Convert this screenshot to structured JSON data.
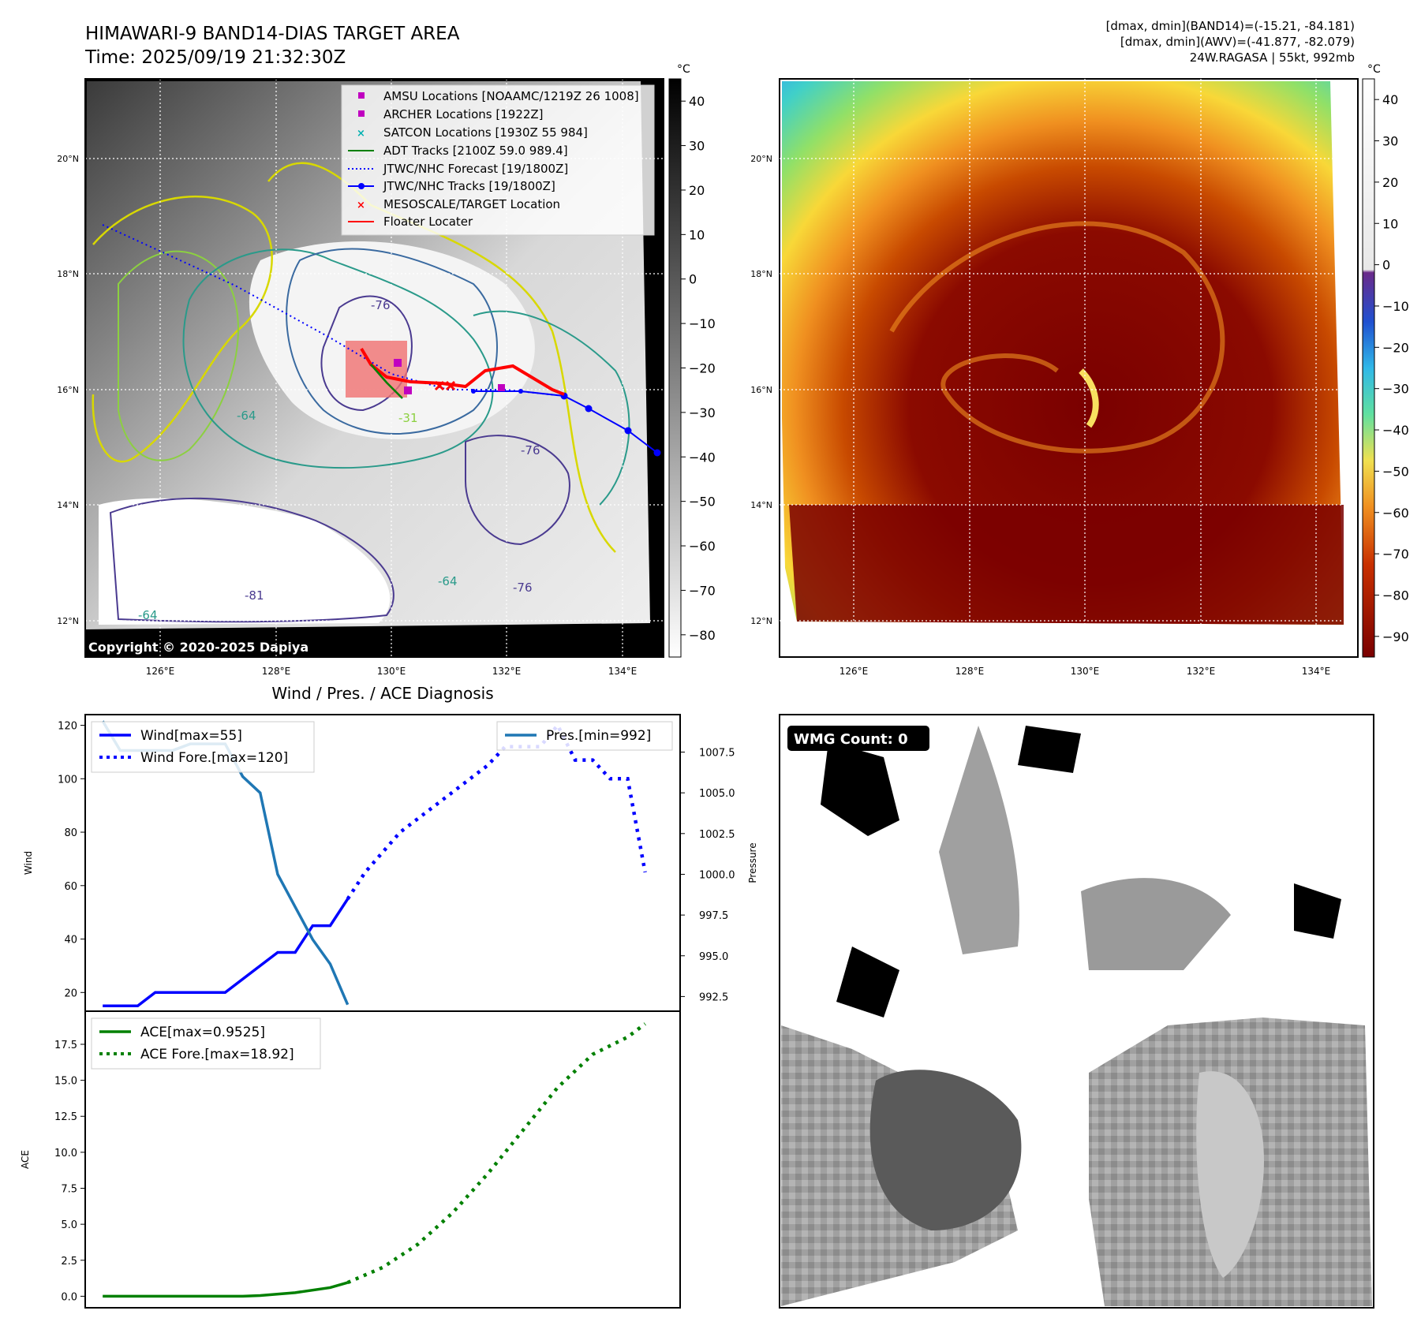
{
  "header": {
    "title_line1": "HIMAWARI-9 BAND14-DIAS TARGET AREA",
    "title_line2": "Time: 2025/09/19 21:32:30Z",
    "info_line1": "[dmax, dmin](BAND14)=(-15.21, -84.181)",
    "info_line2": "[dmax, dmin](AWV)=(-41.877, -82.079)",
    "info_line3": "24W.RAGASA | 55kt, 992mb"
  },
  "maps": {
    "lat_labels": [
      "20°N",
      "18°N",
      "16°N",
      "14°N",
      "12°N"
    ],
    "lon_labels": [
      "126°E",
      "128°E",
      "130°E",
      "132°E",
      "134°E"
    ],
    "unit": "°C",
    "copyright": "Copyright © 2020-2025 Dapiya",
    "contour_labels": [
      "-76",
      "-64",
      "-76",
      "-81",
      "-64",
      "-76",
      "-64",
      "-31"
    ],
    "left_colorbar_ticks": [
      "40",
      "30",
      "20",
      "10",
      "0",
      "−10",
      "−20",
      "−30",
      "−40",
      "−50",
      "−60",
      "−70",
      "−80"
    ],
    "right_colorbar_ticks": [
      "40",
      "30",
      "20",
      "10",
      "0",
      "−10",
      "−20",
      "−30",
      "−40",
      "−50",
      "−60",
      "−70",
      "−80",
      "−90"
    ],
    "legend": [
      {
        "label": "AMSU Locations [NOAAMC/1219Z 26 1008]",
        "kind": "square",
        "color": "#c000c0"
      },
      {
        "label": "ARCHER Locations [1922Z]",
        "kind": "square",
        "color": "#c000c0"
      },
      {
        "label": "SATCON Locations [1930Z 55 984]",
        "kind": "x",
        "color": "#00b0b0"
      },
      {
        "label": "ADT Tracks [2100Z 59.0 989.4]",
        "kind": "line",
        "color": "#008000"
      },
      {
        "label": "JTWC/NHC Forecast [19/1800Z]",
        "kind": "dotted",
        "color": "#0000ff"
      },
      {
        "label": "JTWC/NHC Tracks [19/1800Z]",
        "kind": "line-dot",
        "color": "#0000ff"
      },
      {
        "label": "MESOSCALE/TARGET Location",
        "kind": "x",
        "color": "#ff0000"
      },
      {
        "label": "Floater Locater",
        "kind": "line",
        "color": "#ff0000"
      }
    ]
  },
  "diagnosis": {
    "title": "Wind / Pres. / ACE Diagnosis",
    "wmg_count": "WMG Count: 0"
  },
  "chart_data": [
    {
      "type": "line",
      "title": "Wind / Pres. / ACE Diagnosis",
      "ylabel": "Wind",
      "y2label": "Pressure",
      "ylim": [
        13,
        124
      ],
      "y2lim": [
        991.6,
        1009.8
      ],
      "xlim": [
        0,
        34
      ],
      "yticks": [
        20,
        40,
        60,
        80,
        100,
        120
      ],
      "y2ticks": [
        "992.5",
        "995.0",
        "997.5",
        "1000.0",
        "1002.5",
        "1005.0",
        "1007.5"
      ],
      "legend": [
        "Wind[max=55]",
        "Wind Fore.[max=120]",
        "Pres.[min=992]"
      ],
      "series": [
        {
          "name": "Wind[max=55]",
          "axis": "left",
          "style": "solid",
          "color": "#0000ff",
          "x": [
            1,
            3,
            4,
            5,
            7,
            8,
            10,
            11,
            12,
            13,
            14,
            15
          ],
          "y": [
            15,
            15,
            20,
            20,
            20,
            20,
            30,
            35,
            35,
            45,
            45,
            55
          ]
        },
        {
          "name": "Wind Fore.[max=120]",
          "axis": "left",
          "style": "dotted",
          "color": "#0000ff",
          "x": [
            15,
            16,
            18,
            20,
            21,
            22,
            23,
            24,
            25,
            26,
            27,
            28,
            29,
            30,
            31,
            32
          ],
          "y": [
            55,
            65,
            80,
            90,
            95,
            100,
            105,
            112,
            112,
            112,
            120,
            107,
            107,
            100,
            100,
            65
          ]
        },
        {
          "name": "Pres.[min=992]",
          "axis": "right",
          "style": "solid",
          "color": "#1f77b4",
          "x": [
            1,
            2,
            3,
            4,
            5,
            6,
            7,
            8,
            9,
            10,
            11,
            12,
            13,
            14,
            15
          ],
          "y": [
            1009.4,
            1007.6,
            1007.6,
            1007.6,
            1007.6,
            1008.0,
            1008.0,
            1008.0,
            1006.0,
            1005.0,
            1000.0,
            998.0,
            996.0,
            994.5,
            992.0
          ]
        }
      ]
    },
    {
      "type": "line",
      "ylabel": "ACE",
      "ylim": [
        -0.8,
        19.8
      ],
      "xlim": [
        0,
        34
      ],
      "yticks": [
        "0.0",
        "2.5",
        "5.0",
        "7.5",
        "10.0",
        "12.5",
        "15.0",
        "17.5"
      ],
      "legend": [
        "ACE[max=0.9525]",
        "ACE Fore.[max=18.92]"
      ],
      "series": [
        {
          "name": "ACE[max=0.9525]",
          "style": "solid",
          "color": "#008000",
          "x": [
            1,
            4,
            7,
            9,
            10,
            12,
            14,
            15
          ],
          "y": [
            0,
            0,
            0,
            0,
            0.05,
            0.25,
            0.6,
            0.95
          ]
        },
        {
          "name": "ACE Fore.[max=18.92]",
          "style": "dotted",
          "color": "#008000",
          "x": [
            15,
            17,
            19,
            21,
            23,
            25,
            27,
            29,
            31,
            32
          ],
          "y": [
            0.95,
            2.0,
            3.6,
            5.8,
            8.5,
            11.5,
            14.5,
            16.8,
            18.0,
            18.92
          ]
        }
      ]
    }
  ]
}
